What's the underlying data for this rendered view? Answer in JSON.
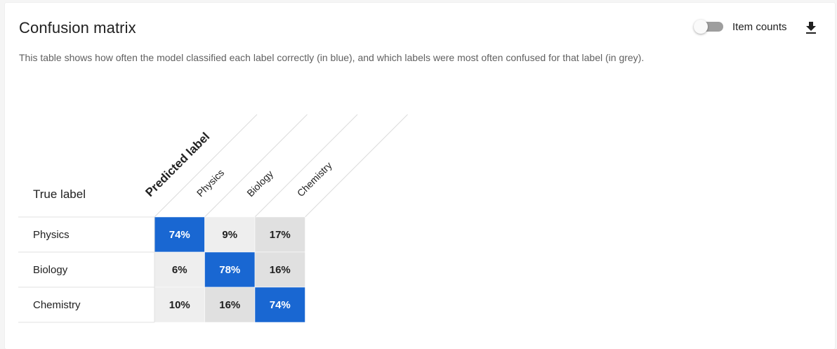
{
  "title": "Confusion matrix",
  "description": "This table shows how often the model classified each label correctly (in blue), and which labels were most often confused for that label (in grey).",
  "toggle": {
    "label": "Item counts",
    "state": "off"
  },
  "icons": {
    "download": "download-icon"
  },
  "chart_data": {
    "type": "heatmap",
    "row_header": "True label",
    "column_header": "Predicted label",
    "rows": [
      "Physics",
      "Biology",
      "Chemistry"
    ],
    "columns": [
      "Physics",
      "Biology",
      "Chemistry"
    ],
    "values": [
      [
        "74%",
        "9%",
        "17%"
      ],
      [
        "6%",
        "78%",
        "16%"
      ],
      [
        "10%",
        "16%",
        "74%"
      ]
    ],
    "colors": {
      "correct": "#1967d2",
      "confused_high": "#e0e0e0",
      "confused_low": "#eeeeee",
      "text_dark": "#212121",
      "text_light": "#ffffff"
    }
  }
}
